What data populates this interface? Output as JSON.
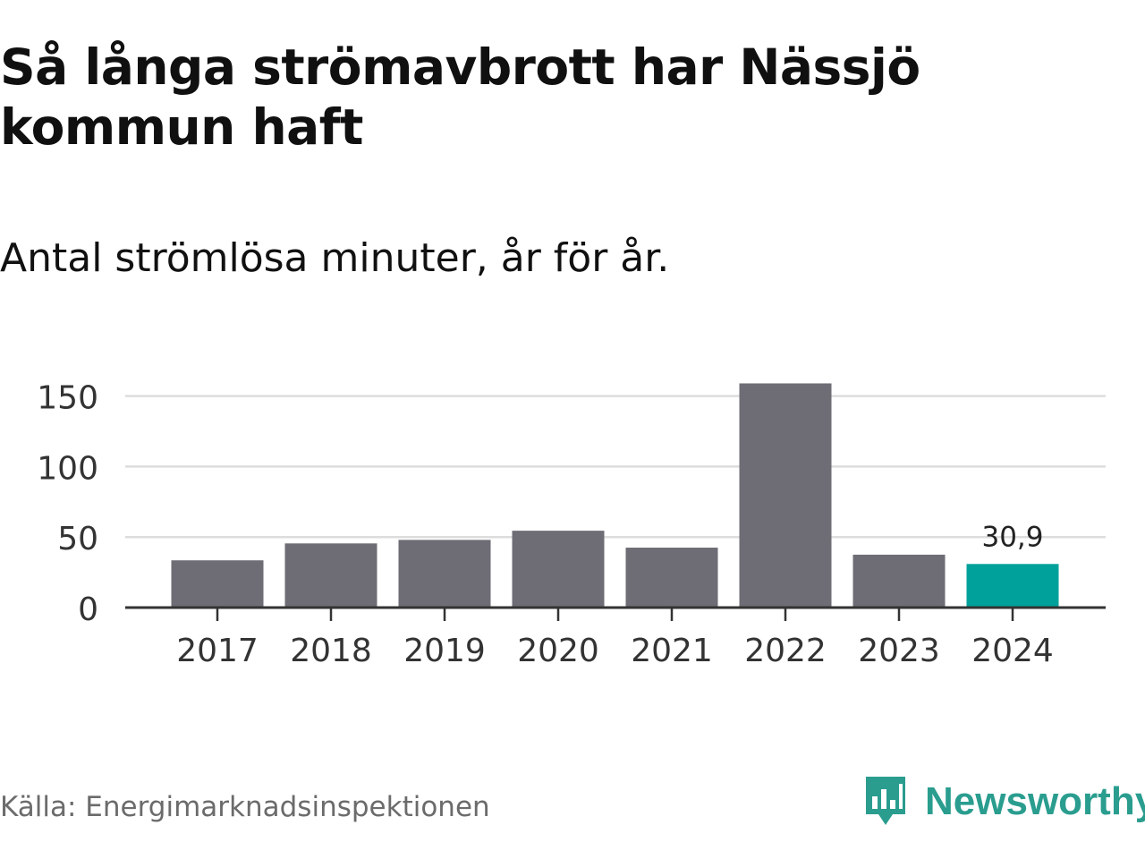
{
  "title": "Så långa strömavbrott har Nässjö kommun haft",
  "subtitle": "Antal strömlösa minuter, år för år.",
  "source": "Källa: Energimarknadsinspektionen",
  "brand": {
    "name": "Newsworthy",
    "icon": "newsworthy-logo-icon",
    "color": "#2a9d8f"
  },
  "colors": {
    "bar": "#6e6d75",
    "highlight": "#00a19a",
    "grid": "#dddddd",
    "axis": "#333333"
  },
  "chart_data": {
    "type": "bar",
    "title": "Så långa strömavbrott har Nässjö kommun haft",
    "subtitle": "Antal strömlösa minuter, år för år.",
    "xlabel": "",
    "ylabel": "",
    "categories": [
      "2017",
      "2018",
      "2019",
      "2020",
      "2021",
      "2022",
      "2023",
      "2024"
    ],
    "values": [
      33.5,
      45.5,
      48,
      54.5,
      42.5,
      159,
      37.5,
      30.9
    ],
    "yticks": [
      0,
      50,
      100,
      150
    ],
    "ylim": [
      0,
      165
    ],
    "highlight_index": 7,
    "annotations": [
      {
        "category": "2024",
        "label": "30,9"
      }
    ],
    "grid": true
  }
}
